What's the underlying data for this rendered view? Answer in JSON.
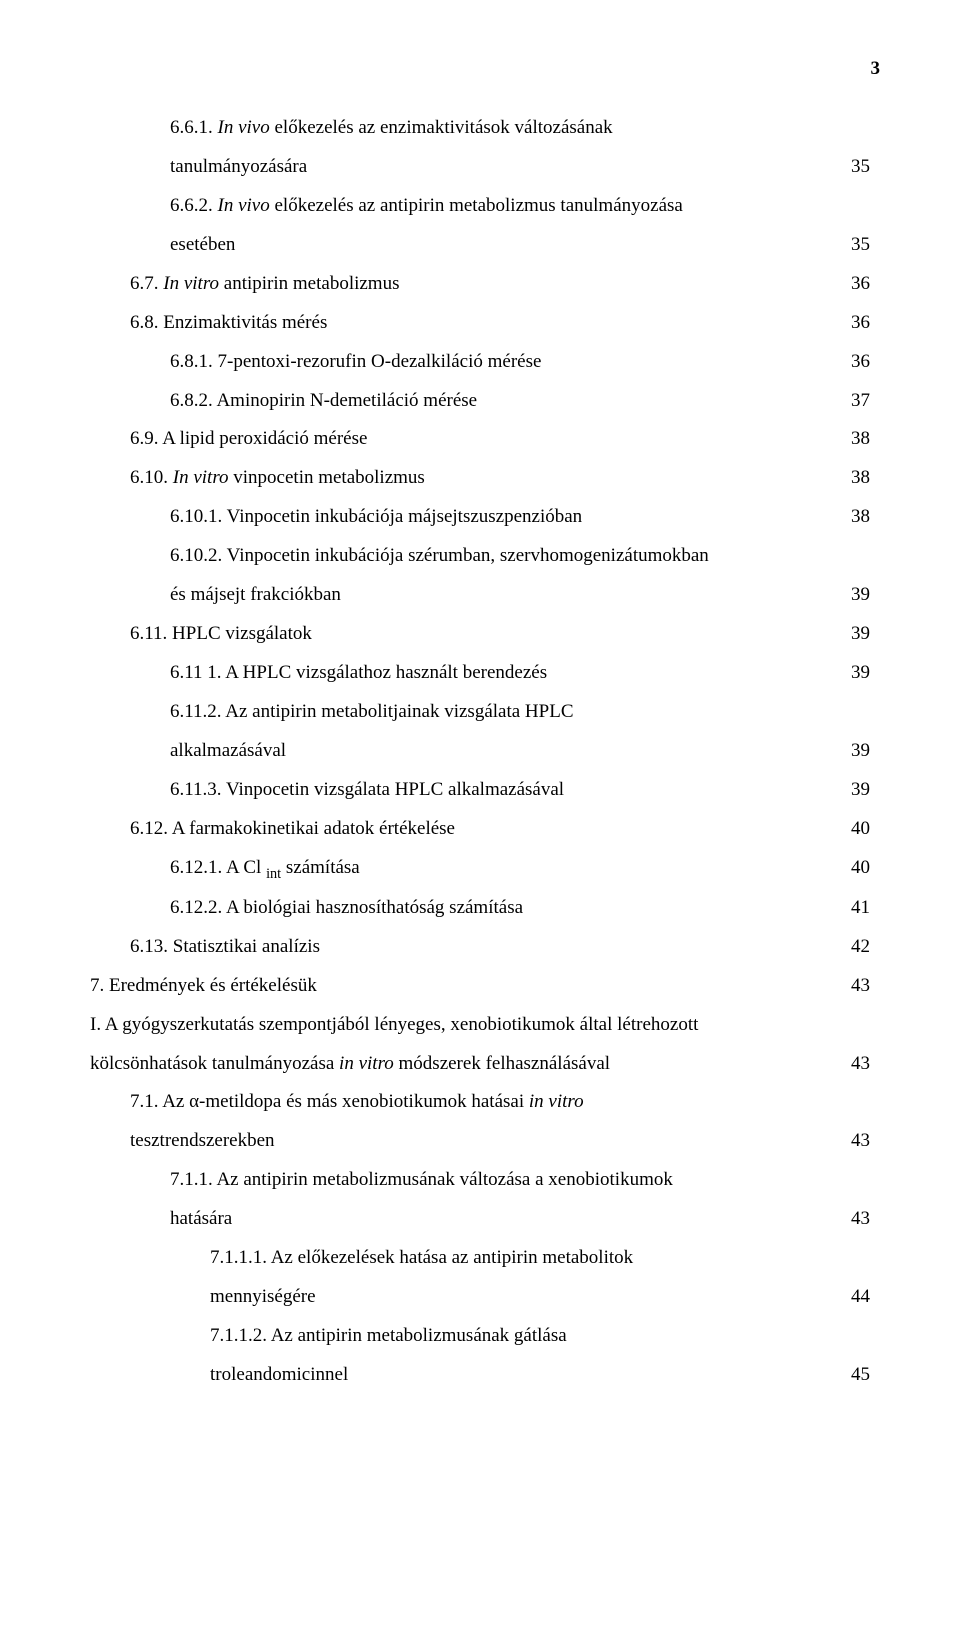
{
  "page_number": "3",
  "entries": [
    {
      "indent": 2,
      "text": "6.6.1. <span class=\"italic\">In vivo</span> előkezelés az enzimaktivitások változásának",
      "page": "",
      "continuation": true
    },
    {
      "indent": 2,
      "text": "tanulmányozására",
      "page": "35"
    },
    {
      "indent": 2,
      "text": "6.6.2. <span class=\"italic\">In vivo</span> előkezelés az antipirin metabolizmus tanulmányozása",
      "page": "",
      "continuation": true
    },
    {
      "indent": 2,
      "text": "esetében",
      "page": "35"
    },
    {
      "indent": 1,
      "text": "6.7. <span class=\"italic\">In vitro</span> antipirin metabolizmus",
      "page": "36"
    },
    {
      "indent": 1,
      "text": "6.8. Enzimaktivitás mérés",
      "page": "36"
    },
    {
      "indent": 2,
      "text": "6.8.1. 7-pentoxi-rezorufin O-dezalkiláció mérése",
      "page": "36"
    },
    {
      "indent": 2,
      "text": "6.8.2. Aminopirin N-demetiláció mérése",
      "page": "37"
    },
    {
      "indent": 1,
      "text": "6.9. A lipid peroxidáció mérése",
      "page": "38"
    },
    {
      "indent": 1,
      "text": "6.10. <span class=\"italic\">In vitro</span> vinpocetin metabolizmus",
      "page": "38"
    },
    {
      "indent": 2,
      "text": "6.10.1. Vinpocetin inkubációja májsejtszuszpenzióban",
      "page": "38"
    },
    {
      "indent": 2,
      "text": "6.10.2. Vinpocetin inkubációja szérumban, szervhomogenizátumokban",
      "page": "",
      "continuation": true
    },
    {
      "indent": 2,
      "text": "és májsejt frakciókban",
      "page": "39"
    },
    {
      "indent": 1,
      "text": "6.11. HPLC vizsgálatok",
      "page": "39"
    },
    {
      "indent": 2,
      "text": "6.11 1. A HPLC vizsgálathoz használt berendezés",
      "page": "39"
    },
    {
      "indent": 2,
      "text": "6.11.2. Az antipirin metabolitjainak vizsgálata HPLC",
      "page": "",
      "continuation": true
    },
    {
      "indent": 2,
      "text": "alkalmazásával",
      "page": "39"
    },
    {
      "indent": 2,
      "text": "6.11.3. Vinpocetin vizsgálata HPLC alkalmazásával",
      "page": "39"
    },
    {
      "indent": 1,
      "text": "6.12. A farmakokinetikai adatok értékelése",
      "page": "40"
    },
    {
      "indent": 2,
      "text": "6.12.1. A Cl <span class=\"sub\">int</span> számítása",
      "page": "40"
    },
    {
      "indent": 2,
      "text": "6.12.2. A biológiai hasznosíthatóság számítása",
      "page": "41"
    },
    {
      "indent": 1,
      "text": "6.13. Statisztikai analízis",
      "page": "42"
    },
    {
      "indent": 0,
      "text": "7. Eredmények és értékelésük",
      "page": "43"
    },
    {
      "indent": 0,
      "text": "I. A gyógyszerkutatás szempontjából lényeges, xenobiotikumok által létrehozott",
      "page": "",
      "continuation": true
    },
    {
      "indent": 0,
      "text": "kölcsönhatások tanulmányozása <span class=\"italic\">in vitro</span> módszerek felhasználásával",
      "page": "43"
    },
    {
      "indent": 1,
      "text": "7.1. Az α-metildopa és más xenobiotikumok hatásai <span class=\"italic\">in vitro</span>",
      "page": "",
      "continuation": true
    },
    {
      "indent": 1,
      "text": "tesztrendszerekben",
      "page": "43"
    },
    {
      "indent": 2,
      "text": "7.1.1. Az antipirin metabolizmusának változása a xenobiotikumok",
      "page": "",
      "continuation": true
    },
    {
      "indent": 2,
      "text": "hatására",
      "page": "43"
    },
    {
      "indent": 3,
      "text": "7.1.1.1. Az előkezelések hatása az antipirin metabolitok",
      "page": "",
      "continuation": true
    },
    {
      "indent": 3,
      "text": "mennyiségére",
      "page": "44"
    },
    {
      "indent": 3,
      "text": "7.1.1.2. Az antipirin metabolizmusának gátlása",
      "page": "",
      "continuation": true
    },
    {
      "indent": 3,
      "text": "troleandomicinnel",
      "page": "45"
    }
  ]
}
